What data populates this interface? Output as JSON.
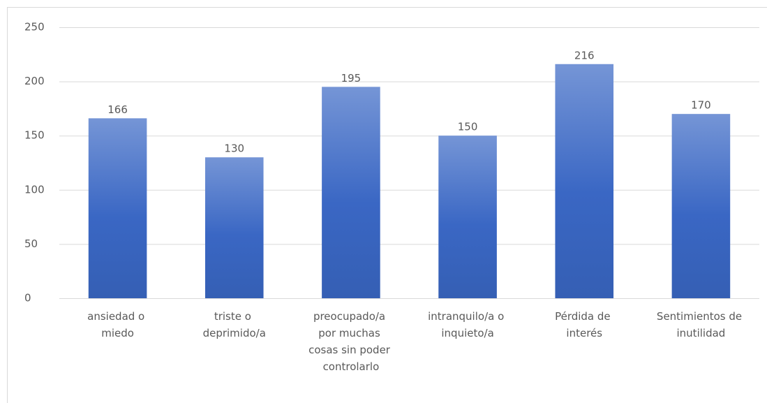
{
  "chart_data": {
    "type": "bar",
    "categories": [
      "ansiedad o miedo",
      "triste o deprimido/a",
      "preocupado/a por muchas cosas sin poder controlarlo",
      "intranquilo/a o inquieto/a",
      "Pérdida de interés",
      "Sentimientos de inutilidad"
    ],
    "values": [
      166,
      130,
      195,
      150,
      216,
      170
    ],
    "color": "#3a67c4",
    "ylim": [
      0,
      250
    ],
    "yticks": [
      0,
      50,
      100,
      150,
      200,
      250
    ],
    "grid": true
  }
}
